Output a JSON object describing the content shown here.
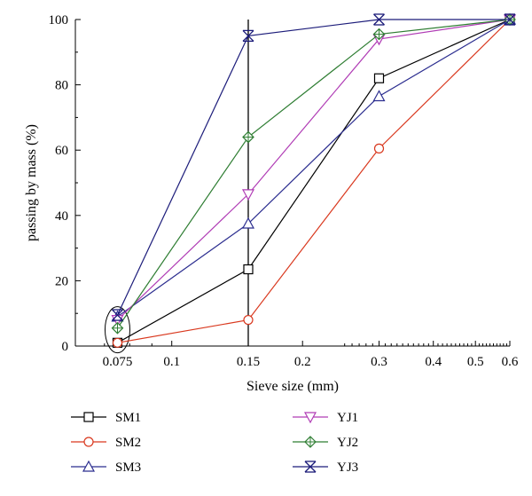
{
  "chart_data": {
    "type": "line",
    "title": "",
    "xlabel": "Sieve size (mm)",
    "ylabel": "passing by mass (%)",
    "x_scale": "log",
    "xlim": [
      0.06,
      0.6
    ],
    "ylim": [
      0,
      100
    ],
    "x_ticks": [
      0.075,
      0.1,
      0.15,
      0.2,
      0.3,
      0.4,
      0.5,
      0.6
    ],
    "x_tick_labels": [
      "0.075",
      "0.1",
      "0.15",
      "0.2",
      "0.3",
      "0.4",
      "0.5",
      "0.6"
    ],
    "y_ticks": [
      0,
      20,
      40,
      60,
      80,
      100
    ],
    "y_tick_labels": [
      "0",
      "20",
      "40",
      "60",
      "80",
      "100"
    ],
    "grid": false,
    "legend_position": "bottom",
    "reference_line_x": 0.15,
    "annotation": "ellipse around the 0.075 mm points",
    "x": [
      0.075,
      0.15,
      0.3,
      0.6
    ],
    "series": [
      {
        "name": "SM1",
        "marker": "square",
        "color": "#000000",
        "values": [
          1,
          23.5,
          82,
          100
        ]
      },
      {
        "name": "SM2",
        "marker": "circle",
        "color": "#d9381e",
        "values": [
          1,
          8,
          60.5,
          100
        ]
      },
      {
        "name": "SM3",
        "marker": "triangle-up",
        "color": "#2b2d8f",
        "values": [
          9,
          37.5,
          76.5,
          100
        ]
      },
      {
        "name": "YJ1",
        "marker": "triangle-down",
        "color": "#b03cb5",
        "values": [
          8,
          46.5,
          94,
          100
        ]
      },
      {
        "name": "YJ2",
        "marker": "diamond-plus",
        "color": "#2e7d32",
        "values": [
          5.5,
          64,
          95.5,
          100
        ]
      },
      {
        "name": "YJ3",
        "marker": "star-x",
        "color": "#1c1c7a",
        "values": [
          9.5,
          95,
          100,
          100
        ]
      }
    ]
  }
}
